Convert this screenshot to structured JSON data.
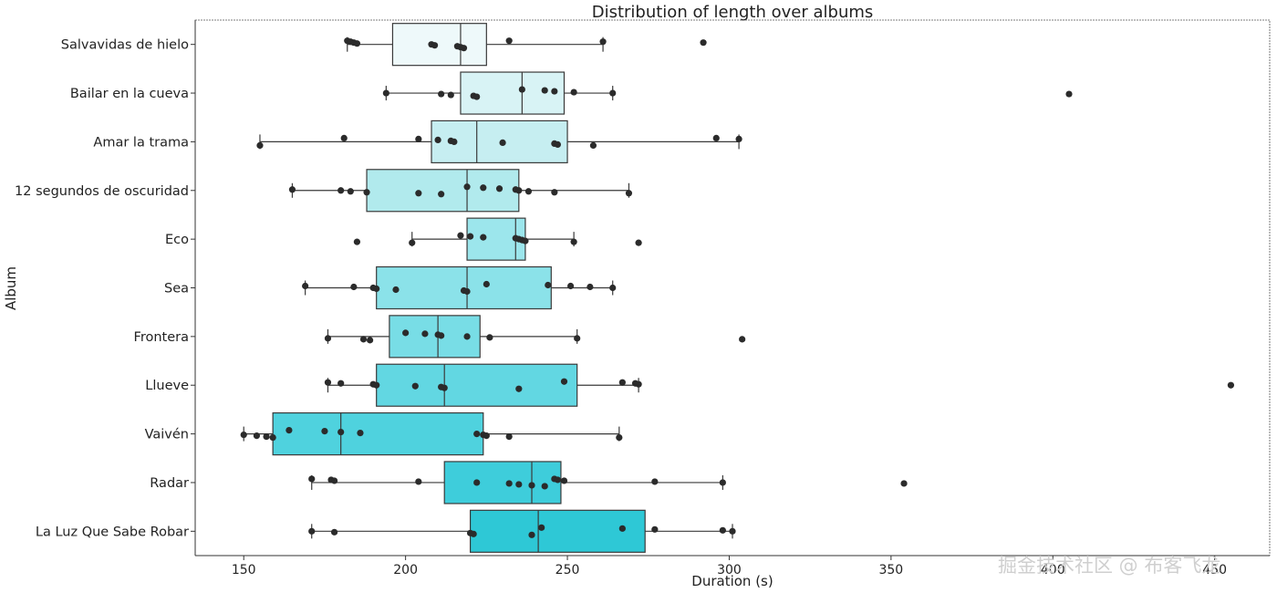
{
  "watermark": "掘金技术社区 @ 布客飞龙",
  "chart_data": {
    "type": "box",
    "orientation": "horizontal",
    "title": "Distribution of length over albums",
    "xlabel": "Duration (s)",
    "ylabel": "Album",
    "xlim": [
      135,
      467
    ],
    "xticks": [
      150,
      200,
      250,
      300,
      350,
      400,
      450
    ],
    "grid": false,
    "series": [
      {
        "name": "Salvavidas de hielo",
        "color": "#eef9fa",
        "whisker": [
          182,
          261
        ],
        "q1": 196,
        "median": 217,
        "q3": 225,
        "points": [
          182,
          183,
          184,
          185,
          208,
          209,
          216,
          217,
          218,
          232,
          261,
          292
        ]
      },
      {
        "name": "Bailar en la cueva",
        "color": "#d8f3f5",
        "whisker": [
          194,
          264
        ],
        "q1": 217,
        "median": 236,
        "q3": 249,
        "points": [
          194,
          211,
          214,
          221,
          222,
          236,
          243,
          246,
          252,
          264,
          405
        ]
      },
      {
        "name": "Amar la trama",
        "color": "#c6eef1",
        "whisker": [
          155,
          303
        ],
        "q1": 208,
        "median": 222,
        "q3": 250,
        "points": [
          155,
          181,
          204,
          210,
          214,
          215,
          230,
          246,
          247,
          258,
          296,
          303
        ]
      },
      {
        "name": "12 segundos de oscuridad",
        "color": "#b1eaed",
        "whisker": [
          165,
          269
        ],
        "q1": 188,
        "median": 219,
        "q3": 235,
        "points": [
          165,
          180,
          183,
          188,
          204,
          211,
          219,
          224,
          229,
          234,
          235,
          238,
          246,
          269
        ]
      },
      {
        "name": "Eco",
        "color": "#9ce6ec",
        "whisker": [
          202,
          252
        ],
        "q1": 219,
        "median": 234,
        "q3": 237,
        "points": [
          185,
          202,
          217,
          220,
          224,
          234,
          235,
          236,
          237,
          252,
          272
        ]
      },
      {
        "name": "Sea",
        "color": "#8be2e9",
        "whisker": [
          169,
          264
        ],
        "q1": 191,
        "median": 219,
        "q3": 245,
        "points": [
          169,
          184,
          190,
          191,
          197,
          218,
          219,
          225,
          244,
          251,
          257,
          264
        ]
      },
      {
        "name": "Frontera",
        "color": "#78dde6",
        "whisker": [
          176,
          253
        ],
        "q1": 195,
        "median": 210,
        "q3": 223,
        "points": [
          176,
          187,
          189,
          200,
          206,
          210,
          211,
          219,
          226,
          253,
          304
        ]
      },
      {
        "name": "Llueve",
        "color": "#62d7e2",
        "whisker": [
          176,
          272
        ],
        "q1": 191,
        "median": 212,
        "q3": 253,
        "points": [
          176,
          180,
          190,
          191,
          203,
          211,
          212,
          235,
          249,
          267,
          271,
          272,
          455
        ]
      },
      {
        "name": "Vaivén",
        "color": "#4fd2de",
        "whisker": [
          150,
          266
        ],
        "q1": 159,
        "median": 180,
        "q3": 224,
        "points": [
          150,
          154,
          157,
          159,
          164,
          175,
          180,
          186,
          222,
          224,
          225,
          232,
          266
        ]
      },
      {
        "name": "Radar",
        "color": "#3ecddb",
        "whisker": [
          171,
          298
        ],
        "q1": 212,
        "median": 239,
        "q3": 248,
        "points": [
          171,
          177,
          178,
          204,
          222,
          232,
          235,
          239,
          243,
          246,
          247,
          249,
          277,
          298,
          354
        ]
      },
      {
        "name": "La Luz Que Sabe Robar",
        "color": "#2ec8d6",
        "whisker": [
          171,
          301
        ],
        "q1": 220,
        "median": 241,
        "q3": 274,
        "points": [
          171,
          178,
          220,
          221,
          239,
          242,
          267,
          277,
          298,
          301
        ]
      }
    ]
  }
}
